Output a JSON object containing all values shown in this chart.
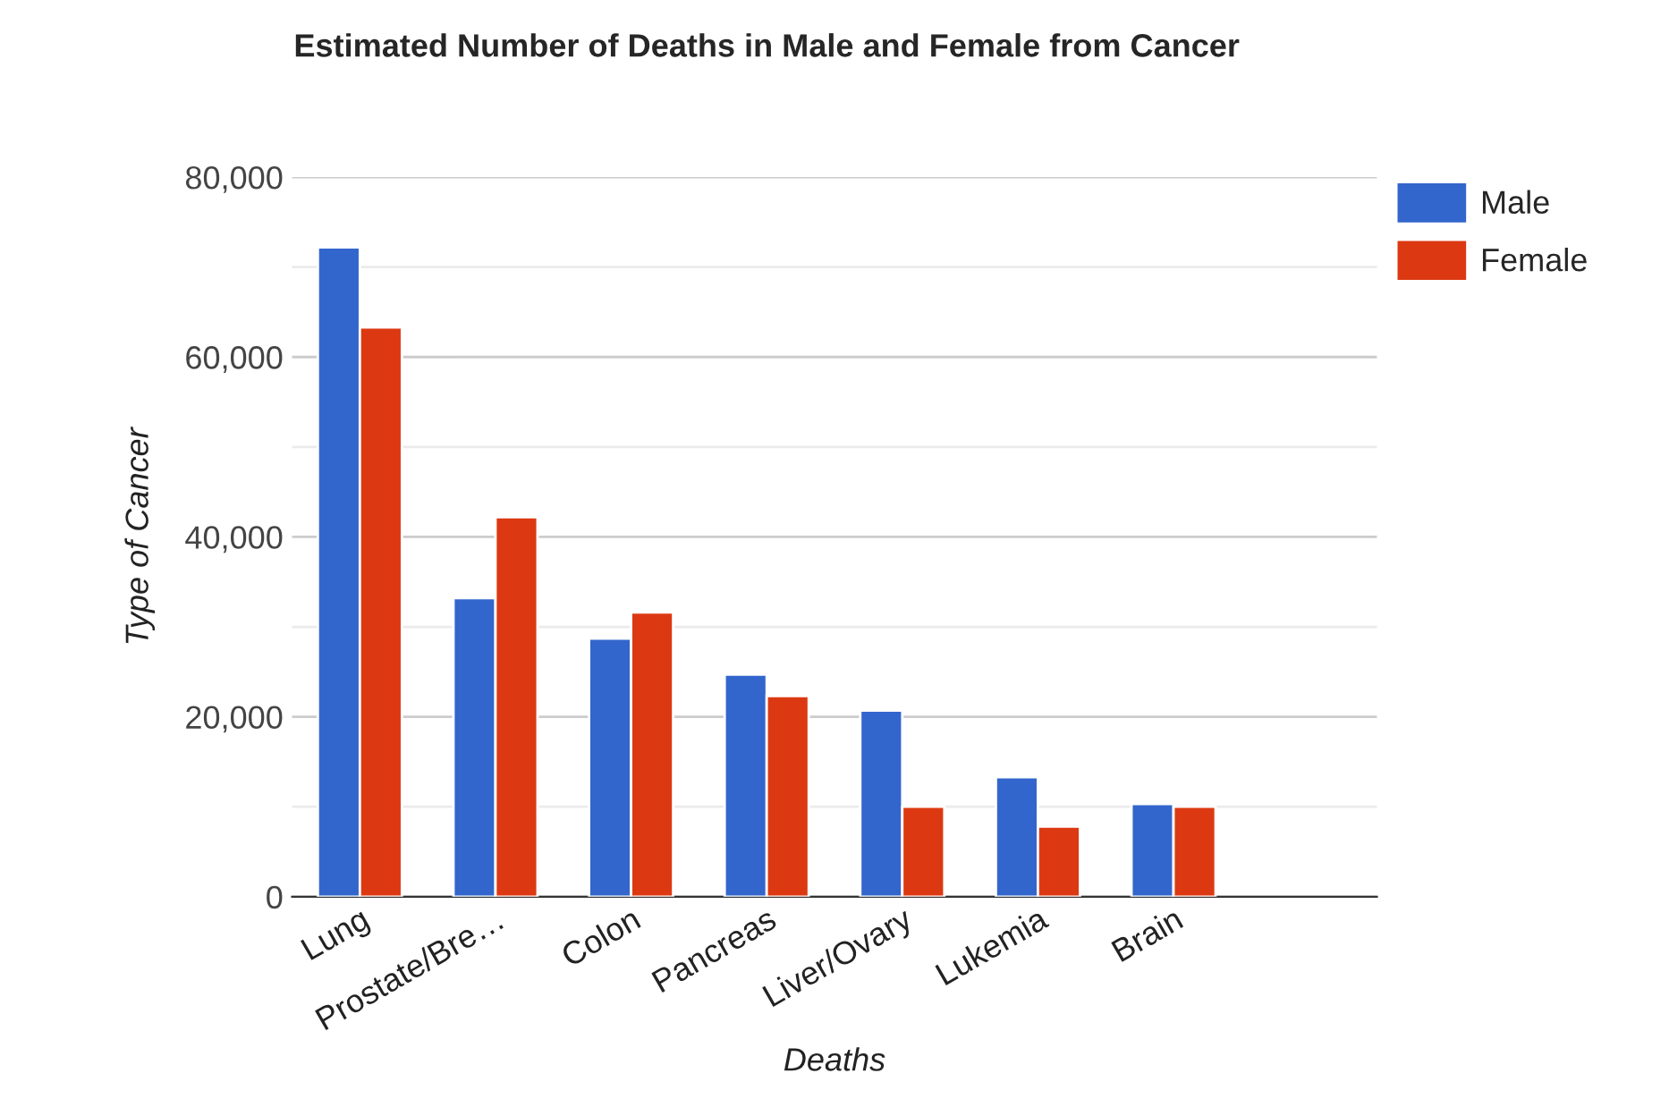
{
  "chart_data": {
    "type": "bar",
    "title": "Estimated Number of Deaths in Male and Female from Cancer",
    "xlabel": "Deaths",
    "ylabel": "Type of Cancer",
    "categories": [
      "Lung",
      "Prostate/Bre…",
      "Colon",
      "Pancreas",
      "Liver/Ovary",
      "Lukemia",
      "Brain",
      null
    ],
    "series": [
      {
        "name": "Male",
        "color": "#3366cc",
        "values": [
          72200,
          33200,
          28700,
          24700,
          20700,
          13300,
          10300,
          null
        ]
      },
      {
        "name": "Female",
        "color": "#dc3912",
        "values": [
          63300,
          42200,
          31600,
          22300,
          10000,
          7800,
          10000,
          null
        ]
      }
    ],
    "ylim": [
      0,
      80000
    ],
    "yticks": [
      {
        "value": 0,
        "label": "0"
      },
      {
        "value": 10000,
        "label": null
      },
      {
        "value": 20000,
        "label": "20,000"
      },
      {
        "value": 30000,
        "label": null
      },
      {
        "value": 40000,
        "label": "40,000"
      },
      {
        "value": 50000,
        "label": null
      },
      {
        "value": 60000,
        "label": "60,000"
      },
      {
        "value": 70000,
        "label": null
      },
      {
        "value": 80000,
        "label": "80,000"
      }
    ],
    "grid": "y",
    "legend": "top right"
  }
}
